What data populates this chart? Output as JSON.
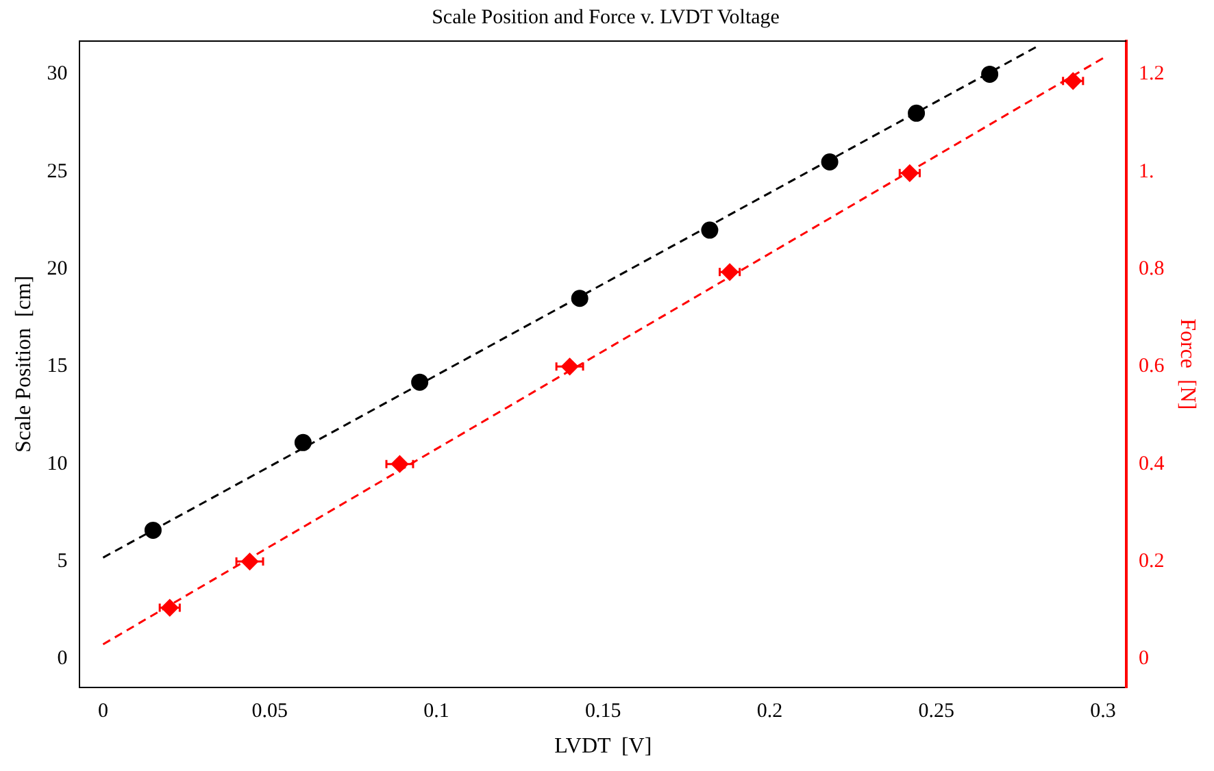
{
  "chart_data": {
    "type": "scatter",
    "title": "Scale Position and Force v. LVDT Voltage",
    "xlabel": "LVDT  [V]",
    "ylabel": "Scale Position  [cm]",
    "y2label": "Force  [N]",
    "xlim": [
      -0.007,
      0.307
    ],
    "xticks": [
      0,
      0.05,
      0.1,
      0.15,
      0.2,
      0.25,
      0.3
    ],
    "ylim": [
      -1.45,
      31.7
    ],
    "yticks": [
      0,
      5,
      10,
      15,
      20,
      25,
      30
    ],
    "y2lim": [
      -0.058,
      1.268
    ],
    "y2ticks": [
      0,
      0.2,
      0.4,
      0.6,
      0.8,
      {
        "value": 1,
        "label": "1."
      },
      1.2
    ],
    "grid": false,
    "legend": false,
    "series": [
      {
        "type": "scatter",
        "color": "#000000",
        "marker": "circle",
        "x": [
          0.015,
          0.06,
          0.095,
          0.143,
          0.182,
          0.218,
          0.244,
          0.266
        ],
        "values": [
          6.6,
          11.1,
          14.2,
          18.5,
          22,
          25.5,
          28,
          30
        ]
      },
      {
        "type": "line",
        "color": "#000000",
        "marker": "none",
        "line_style": "dashed",
        "x": [
          0,
          0.28
        ],
        "values": [
          5.2,
          31.4
        ]
      },
      {
        "type": "scatter",
        "color": "#ff0000",
        "marker": "diamond",
        "axis": "y2",
        "x": [
          0.02,
          0.044,
          0.089,
          0.14,
          0.188,
          0.242,
          0.291
        ],
        "values": [
          0.105,
          0.2,
          0.4,
          0.6,
          0.794,
          0.997,
          1.186
        ],
        "xerrors": [
          0.003,
          0.004,
          0.004,
          0.004,
          0.003,
          0.003,
          0.003
        ]
      },
      {
        "type": "line",
        "color": "#ff0000",
        "marker": "none",
        "line_style": "dashed",
        "axis": "y2",
        "x": [
          0,
          0.3
        ],
        "values": [
          0.03,
          1.233
        ]
      }
    ]
  }
}
